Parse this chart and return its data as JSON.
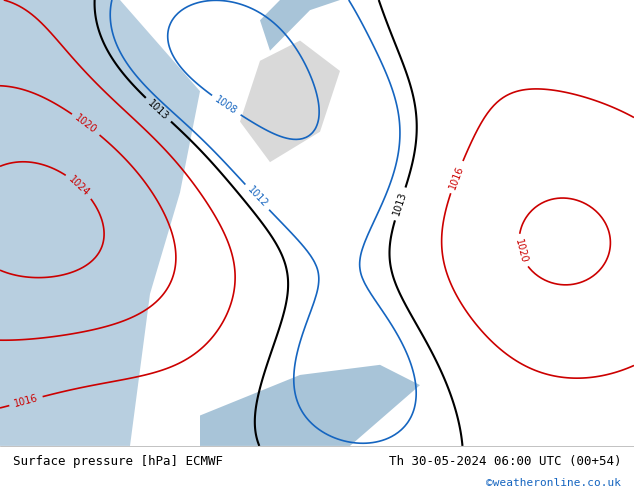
{
  "title_left": "Surface pressure [hPa] ECMWF",
  "title_right": "Th 30-05-2024 06:00 UTC (00+54)",
  "credit": "©weatheronline.co.uk",
  "bg_map_color": "#c8e6c9",
  "land_color": "#c8e6c9",
  "sea_color": "#b0c4de",
  "grey_land_color": "#d3d3d3",
  "bottom_bar_color": "#f0f0f0",
  "text_color_left": "#000000",
  "text_color_right": "#000000",
  "credit_color": "#1565c0",
  "figsize": [
    6.34,
    4.9
  ],
  "dpi": 100
}
